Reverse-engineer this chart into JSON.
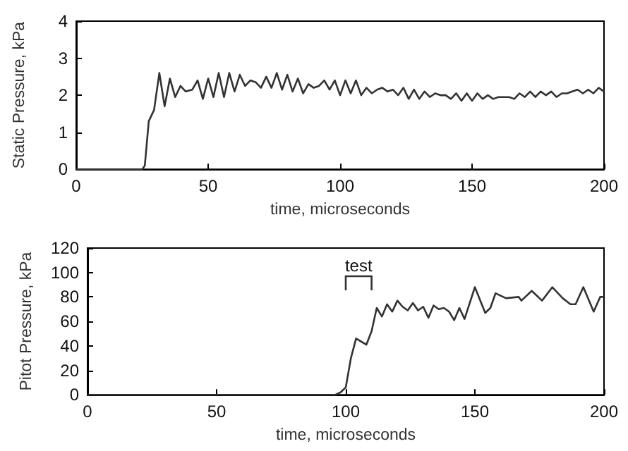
{
  "chart_data": [
    {
      "type": "line",
      "xlabel": "time, microseconds",
      "ylabel": "Static Pressure, kPa",
      "xlim": [
        0,
        200
      ],
      "xticks": [
        0,
        50,
        100,
        150,
        200
      ],
      "ylim": [
        0,
        4
      ],
      "yticks": [
        0,
        1,
        2,
        3,
        4
      ],
      "marker": "none",
      "line_style": "solid",
      "series": [
        {
          "color": "#333333",
          "x": [
            0,
            25,
            26,
            27.5,
            29.5,
            31.5,
            33.5,
            35.5,
            37.5,
            39.5,
            41.5,
            44,
            46,
            48,
            50,
            52,
            54,
            56,
            58,
            60,
            62,
            64,
            66,
            68,
            70,
            72,
            74,
            76,
            78,
            80,
            82,
            84,
            86,
            88,
            90,
            92,
            94,
            96,
            98,
            100,
            102,
            104,
            106,
            108,
            110,
            112,
            114,
            116,
            118,
            120,
            122,
            124,
            126,
            128,
            130,
            132,
            134,
            136,
            138,
            140,
            142,
            144,
            146,
            148,
            150,
            152,
            154,
            156,
            158,
            160,
            162,
            164,
            166,
            168,
            170,
            172,
            174,
            176,
            178,
            180,
            182,
            184,
            186,
            188,
            190,
            192,
            194,
            196,
            198,
            200
          ],
          "values": [
            0,
            0,
            0.1,
            1.3,
            1.6,
            2.6,
            1.7,
            2.45,
            1.95,
            2.25,
            2.1,
            2.15,
            2.4,
            1.9,
            2.45,
            1.95,
            2.6,
            1.95,
            2.6,
            2.1,
            2.55,
            2.25,
            2.4,
            2.35,
            2.2,
            2.5,
            2.2,
            2.6,
            2.15,
            2.55,
            2.1,
            2.45,
            2.05,
            2.3,
            2.2,
            2.25,
            2.4,
            2.15,
            2.4,
            2.0,
            2.4,
            2.05,
            2.4,
            2.0,
            2.2,
            2.05,
            2.15,
            2.2,
            2.1,
            2.15,
            2.0,
            2.2,
            1.9,
            2.15,
            1.9,
            2.1,
            1.95,
            2.05,
            2.0,
            2.0,
            1.9,
            2.05,
            1.85,
            2.05,
            1.85,
            2.05,
            1.9,
            2.0,
            1.9,
            1.95,
            1.95,
            1.95,
            1.9,
            2.05,
            1.95,
            2.1,
            1.95,
            2.1,
            2.0,
            2.1,
            1.95,
            2.05,
            2.05,
            2.1,
            2.15,
            2.05,
            2.15,
            2.05,
            2.2,
            2.1
          ]
        }
      ]
    },
    {
      "type": "line",
      "xlabel": "time, microseconds",
      "ylabel": "Pitot Pressure, kPa",
      "xlim": [
        0,
        200
      ],
      "xticks": [
        0,
        50,
        100,
        150,
        200
      ],
      "ylim": [
        0,
        120
      ],
      "yticks": [
        0,
        20,
        40,
        60,
        80,
        100,
        120
      ],
      "marker": "none",
      "line_style": "solid",
      "annotations": [
        {
          "text": "test",
          "x": 105,
          "y": 92
        }
      ],
      "series": [
        {
          "color": "#333333",
          "x": [
            0,
            96,
            98,
            100,
            102,
            104,
            108,
            110,
            112,
            114,
            116,
            118,
            120,
            122,
            124,
            126,
            128,
            130,
            132,
            134,
            136,
            138,
            140,
            142,
            144,
            146,
            150,
            154,
            156,
            158,
            162,
            167,
            168,
            172,
            176,
            180,
            184,
            187,
            189,
            192,
            196,
            198.5,
            200
          ],
          "values": [
            0,
            0,
            2,
            6,
            30,
            46,
            41,
            52,
            71,
            64,
            74,
            68,
            77,
            72,
            69,
            75,
            69,
            72,
            63,
            73,
            70,
            71,
            68,
            61,
            71,
            62,
            88,
            67,
            71,
            83,
            79,
            80,
            77,
            85,
            77,
            88,
            79,
            74,
            74,
            88,
            68,
            80,
            80
          ]
        }
      ]
    }
  ]
}
